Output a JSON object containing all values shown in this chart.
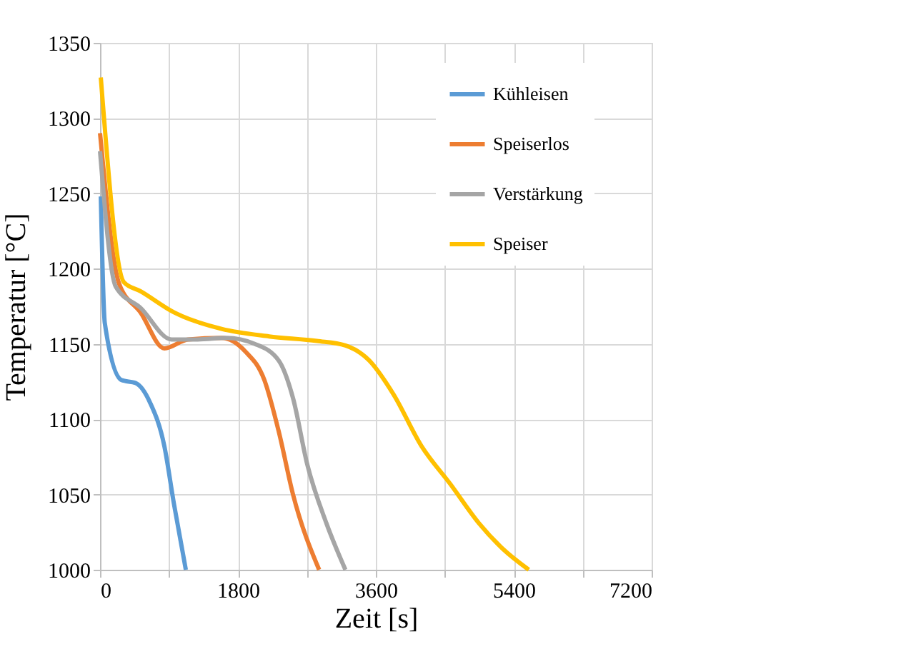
{
  "chart_data": {
    "type": "line",
    "xlabel": "Zeit [s]",
    "ylabel": "Temperatur [°C]",
    "xlim": [
      0,
      7200
    ],
    "ylim": [
      1000,
      1350
    ],
    "xticks": [
      0,
      {
        "value": 900,
        "label": null
      },
      1800,
      {
        "value": 2700,
        "label": null
      },
      3600,
      {
        "value": 4500,
        "label": null
      },
      5400,
      {
        "value": 6300,
        "label": null
      },
      7200
    ],
    "yticks": [
      1000,
      1050,
      1100,
      1150,
      1200,
      1250,
      1300,
      1350
    ],
    "grid": true,
    "legend": "top right",
    "line_style": "solid",
    "marker": "none",
    "series": [
      {
        "name": "Kühleisen",
        "color": "#5b9bd5",
        "x": [
          10,
          62,
          280,
          466,
          653,
          840,
          964,
          1120
        ],
        "values": [
          1248,
          1164,
          1126,
          1124,
          1111,
          1082,
          1044,
          1000
        ]
      },
      {
        "name": "Speiserlos",
        "color": "#ed7d31",
        "x": [
          0,
          249,
          528,
          840,
          1150,
          1586,
          1896,
          2145,
          2332,
          2519,
          2860
        ],
        "values": [
          1290,
          1190,
          1171,
          1147,
          1153,
          1154,
          1145,
          1126,
          1092,
          1050,
          1000
        ]
      },
      {
        "name": "Verstärkung",
        "color": "#a5a5a5",
        "x": [
          0,
          205,
          528,
          933,
          1275,
          1648,
          2021,
          2332,
          2519,
          2705,
          2954,
          3203
        ],
        "values": [
          1278,
          1188,
          1174,
          1153,
          1153,
          1154,
          1150,
          1139,
          1114,
          1070,
          1031,
          1000
        ]
      },
      {
        "name": "Speiser",
        "color": "#ffc000",
        "x": [
          10,
          311,
          528,
          964,
          1586,
          2207,
          2830,
          3203,
          3514,
          3825,
          4198,
          4571,
          4944,
          5255,
          5597
        ],
        "values": [
          1327,
          1191,
          1185,
          1171,
          1160,
          1155,
          1152,
          1149,
          1139,
          1117,
          1082,
          1057,
          1031,
          1014,
          1000
        ]
      }
    ]
  }
}
